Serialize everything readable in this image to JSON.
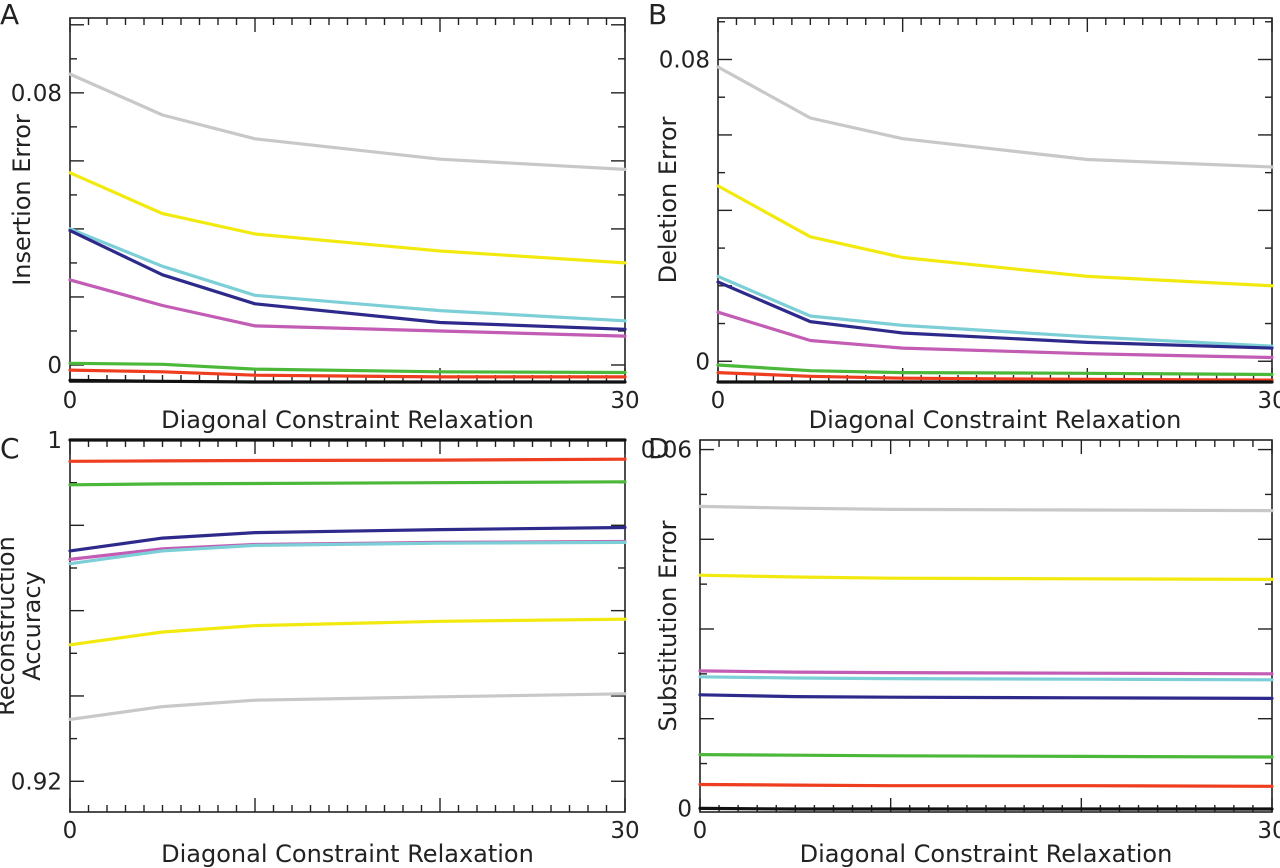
{
  "chart_data": [
    {
      "panel": "A",
      "type": "line",
      "xlabel": "Diagonal Constraint Relaxation",
      "ylabel": "Insertion Error",
      "xlim": [
        0,
        30
      ],
      "ylim": [
        -0.005,
        0.102
      ],
      "xticks": [
        0,
        30
      ],
      "yticks": [
        0,
        0.08
      ],
      "ytick_labels": [
        "0",
        "0.08"
      ],
      "grid": false,
      "x": [
        0,
        5,
        10,
        20,
        30
      ],
      "series": [
        {
          "color": "#c8c8c8",
          "values": [
            0.0855,
            0.0735,
            0.0665,
            0.0605,
            0.0575
          ]
        },
        {
          "color": "#f2ea0e",
          "values": [
            0.0565,
            0.0445,
            0.0385,
            0.0335,
            0.03
          ]
        },
        {
          "color": "#7ccfd6",
          "values": [
            0.04,
            0.029,
            0.0205,
            0.016,
            0.013
          ]
        },
        {
          "color": "#2e2a8c",
          "values": [
            0.0395,
            0.0265,
            0.018,
            0.0125,
            0.0105
          ]
        },
        {
          "color": "#c25cb4",
          "values": [
            0.025,
            0.0175,
            0.0115,
            0.01,
            0.0085
          ]
        },
        {
          "color": "#4cb83a",
          "values": [
            0.0005,
            0.0002,
            -0.0012,
            -0.002,
            -0.0022
          ]
        },
        {
          "color": "#ee3d1f",
          "values": [
            -0.0015,
            -0.002,
            -0.003,
            -0.0035,
            -0.0035
          ]
        },
        {
          "color": "#111111",
          "values": [
            -0.0045,
            -0.0048,
            -0.005,
            -0.005,
            -0.005
          ]
        }
      ]
    },
    {
      "panel": "B",
      "type": "line",
      "xlabel": "Diagonal Constraint Relaxation",
      "ylabel": "Deletion Error",
      "xlim": [
        0,
        30
      ],
      "ylim": [
        -0.0055,
        0.091
      ],
      "xticks": [
        0,
        30
      ],
      "yticks": [
        0,
        0.08
      ],
      "ytick_labels": [
        "0",
        "0.08"
      ],
      "grid": false,
      "x": [
        0,
        5,
        10,
        20,
        30
      ],
      "series": [
        {
          "color": "#c8c8c8",
          "values": [
            0.078,
            0.0645,
            0.059,
            0.0535,
            0.0515
          ]
        },
        {
          "color": "#f2ea0e",
          "values": [
            0.0465,
            0.033,
            0.0275,
            0.0225,
            0.02
          ]
        },
        {
          "color": "#7ccfd6",
          "values": [
            0.0225,
            0.012,
            0.0095,
            0.0065,
            0.004
          ]
        },
        {
          "color": "#2e2a8c",
          "values": [
            0.021,
            0.0105,
            0.0075,
            0.005,
            0.0035
          ]
        },
        {
          "color": "#c25cb4",
          "values": [
            0.013,
            0.0055,
            0.0035,
            0.002,
            0.001
          ]
        },
        {
          "color": "#4cb83a",
          "values": [
            -0.001,
            -0.0025,
            -0.003,
            -0.0032,
            -0.0035
          ]
        },
        {
          "color": "#ee3d1f",
          "values": [
            -0.003,
            -0.004,
            -0.0045,
            -0.0048,
            -0.005
          ]
        },
        {
          "color": "#111111",
          "values": [
            -0.0055,
            -0.0055,
            -0.0055,
            -0.0055,
            -0.0055
          ]
        }
      ]
    },
    {
      "panel": "C",
      "type": "line",
      "xlabel": "Diagonal Constraint Relaxation",
      "ylabel": "Reconstruction Accuracy",
      "xlim": [
        0,
        30
      ],
      "ylim": [
        0.9128,
        1.0
      ],
      "xticks": [
        0,
        30
      ],
      "yticks": [
        0.92,
        1
      ],
      "ytick_labels": [
        "0.92",
        "1"
      ],
      "grid": false,
      "x": [
        0,
        5,
        10,
        20,
        30
      ],
      "series": [
        {
          "color": "#111111",
          "values": [
            1.0,
            1.0,
            1.0,
            1.0,
            1.0
          ]
        },
        {
          "color": "#ee3d1f",
          "values": [
            0.995,
            0.9951,
            0.9952,
            0.9953,
            0.9955
          ]
        },
        {
          "color": "#4cb83a",
          "values": [
            0.9895,
            0.9897,
            0.9898,
            0.99,
            0.9902
          ]
        },
        {
          "color": "#2e2a8c",
          "values": [
            0.974,
            0.977,
            0.9783,
            0.979,
            0.9795
          ]
        },
        {
          "color": "#c25cb4",
          "values": [
            0.972,
            0.9745,
            0.9755,
            0.976,
            0.9762
          ]
        },
        {
          "color": "#7ccfd6",
          "values": [
            0.971,
            0.974,
            0.9753,
            0.9758,
            0.976
          ]
        },
        {
          "color": "#f2ea0e",
          "values": [
            0.952,
            0.955,
            0.9565,
            0.9575,
            0.958
          ]
        },
        {
          "color": "#c8c8c8",
          "values": [
            0.9345,
            0.9375,
            0.939,
            0.9398,
            0.9405
          ]
        }
      ]
    },
    {
      "panel": "D",
      "type": "line",
      "xlabel": "Diagonal Constraint Relaxation",
      "ylabel": "Substitution Error",
      "xlim": [
        0,
        30
      ],
      "ylim": [
        -0.0006,
        0.0616
      ],
      "xticks": [
        0,
        30
      ],
      "yticks": [
        0,
        0.06
      ],
      "ytick_labels": [
        "0",
        "0.06"
      ],
      "grid": false,
      "x": [
        0,
        5,
        10,
        20,
        30
      ],
      "series": [
        {
          "color": "#c8c8c8",
          "values": [
            0.0505,
            0.0502,
            0.05,
            0.0499,
            0.0498
          ]
        },
        {
          "color": "#f2ea0e",
          "values": [
            0.039,
            0.0387,
            0.0385,
            0.0384,
            0.0383
          ]
        },
        {
          "color": "#c25cb4",
          "values": [
            0.023,
            0.0228,
            0.0227,
            0.0226,
            0.0225
          ]
        },
        {
          "color": "#7ccfd6",
          "values": [
            0.022,
            0.0218,
            0.0217,
            0.0216,
            0.0215
          ]
        },
        {
          "color": "#2e2a8c",
          "values": [
            0.019,
            0.0187,
            0.0186,
            0.0185,
            0.0184
          ]
        },
        {
          "color": "#4cb83a",
          "values": [
            0.009,
            0.0089,
            0.0088,
            0.0087,
            0.0086
          ]
        },
        {
          "color": "#ee3d1f",
          "values": [
            0.004,
            0.0039,
            0.0038,
            0.0038,
            0.0037
          ]
        },
        {
          "color": "#111111",
          "values": [
            0.0,
            -0.0001,
            -0.0001,
            -0.0001,
            -0.0001
          ]
        }
      ]
    }
  ]
}
